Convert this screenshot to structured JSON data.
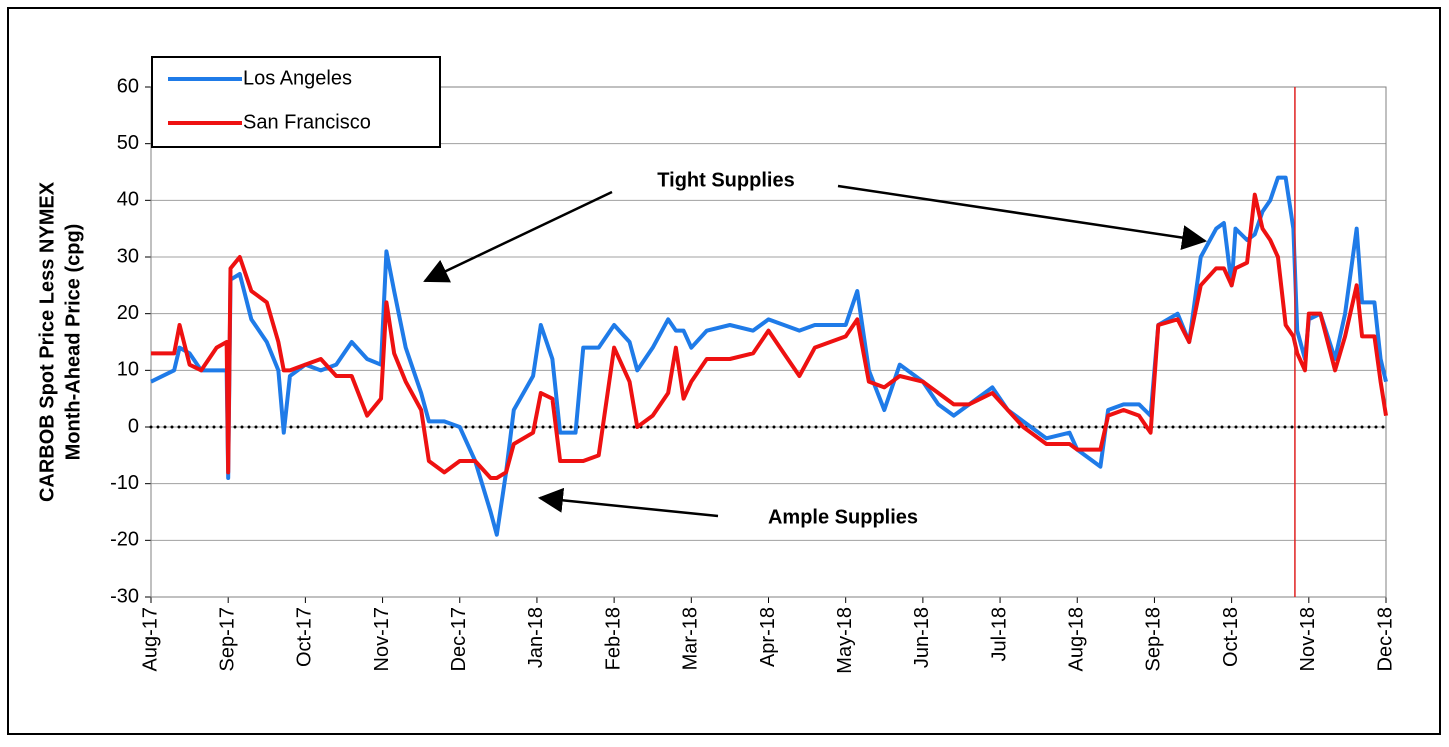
{
  "chart_data": {
    "type": "line",
    "ylabel": [
      "CARBOB Spot Price Less NYMEX",
      "Month-Ahead Price (cpg)"
    ],
    "xlim": [
      0,
      16
    ],
    "xticks": [
      {
        "value": 0,
        "label": "Aug-17"
      },
      {
        "value": 1,
        "label": "Sep-17"
      },
      {
        "value": 2,
        "label": "Oct-17"
      },
      {
        "value": 3,
        "label": "Nov-17"
      },
      {
        "value": 4,
        "label": "Dec-17"
      },
      {
        "value": 5,
        "label": "Jan-18"
      },
      {
        "value": 6,
        "label": "Feb-18"
      },
      {
        "value": 7,
        "label": "Mar-18"
      },
      {
        "value": 8,
        "label": "Apr-18"
      },
      {
        "value": 9,
        "label": "May-18"
      },
      {
        "value": 10,
        "label": "Jun-18"
      },
      {
        "value": 11,
        "label": "Jul-18"
      },
      {
        "value": 12,
        "label": "Aug-18"
      },
      {
        "value": 13,
        "label": "Sep-18"
      },
      {
        "value": 14,
        "label": "Oct-18"
      },
      {
        "value": 15,
        "label": "Nov-18"
      },
      {
        "value": 16,
        "label": "Dec-18"
      }
    ],
    "ylim": [
      -30,
      60
    ],
    "yticks": [
      -30,
      -20,
      -10,
      0,
      10,
      20,
      30,
      40,
      50,
      60
    ],
    "grid": true,
    "zero_line": true,
    "legend": "top-left",
    "vline": {
      "value": 14.82,
      "color": "#e02020"
    },
    "x": [
      0,
      0.3,
      0.37,
      0.5,
      0.65,
      0.85,
      0.98,
      1.0,
      1.03,
      1.15,
      1.3,
      1.5,
      1.65,
      1.72,
      1.8,
      2.0,
      2.2,
      2.4,
      2.6,
      2.8,
      2.98,
      3.05,
      3.15,
      3.3,
      3.5,
      3.6,
      3.8,
      4.0,
      4.2,
      4.4,
      4.48,
      4.6,
      4.7,
      4.95,
      5.05,
      5.2,
      5.3,
      5.5,
      5.6,
      5.8,
      6.0,
      6.2,
      6.3,
      6.5,
      6.7,
      6.8,
      6.9,
      7.0,
      7.2,
      7.5,
      7.8,
      8.0,
      8.2,
      8.4,
      8.6,
      8.8,
      9.0,
      9.15,
      9.3,
      9.5,
      9.7,
      10.0,
      10.2,
      10.4,
      10.6,
      10.9,
      11.1,
      11.3,
      11.6,
      11.9,
      12.0,
      12.3,
      12.4,
      12.6,
      12.8,
      12.95,
      13.05,
      13.3,
      13.45,
      13.6,
      13.8,
      13.9,
      14.0,
      14.05,
      14.2,
      14.3,
      14.4,
      14.5,
      14.6,
      14.7,
      14.8,
      14.85,
      14.95,
      15.0,
      15.15,
      15.34,
      15.47,
      15.62,
      15.69,
      15.85,
      15.93,
      16.0
    ],
    "series": [
      {
        "name": "Los Angeles",
        "color": "#1f7be8",
        "values": [
          8,
          10,
          14,
          13,
          10,
          10,
          10,
          -9,
          26,
          27,
          19,
          15,
          10,
          -1,
          9,
          11,
          10,
          11,
          15,
          12,
          11,
          31,
          24,
          14,
          6,
          1,
          1,
          0,
          -6,
          -15,
          -19,
          -8,
          3,
          9,
          18,
          12,
          -1,
          -1,
          14,
          14,
          18,
          15,
          10,
          14,
          19,
          17,
          17,
          14,
          17,
          18,
          17,
          19,
          18,
          17,
          18,
          18,
          18,
          24,
          10,
          3,
          11,
          8,
          4,
          2,
          4,
          7,
          3,
          1,
          -2,
          -1,
          -4,
          -7,
          3,
          4,
          4,
          2,
          18,
          20,
          15,
          30,
          35,
          36,
          25,
          35,
          33,
          34,
          38,
          40,
          44,
          44,
          35,
          17,
          12,
          19,
          20,
          12,
          20,
          35,
          22,
          22,
          12,
          8
        ]
      },
      {
        "name": "San Francisco",
        "color": "#ee1111",
        "values": [
          13,
          13,
          18,
          11,
          10,
          14,
          15,
          -8,
          28,
          30,
          24,
          22,
          15,
          10,
          10,
          11,
          12,
          9,
          9,
          2,
          5,
          22,
          13,
          8,
          3,
          -6,
          -8,
          -6,
          -6,
          -9,
          -9,
          -8,
          -3,
          -1,
          6,
          5,
          -6,
          -6,
          -6,
          -5,
          14,
          8,
          0,
          2,
          6,
          14,
          5,
          8,
          12,
          12,
          13,
          17,
          13,
          9,
          14,
          15,
          16,
          19,
          8,
          7,
          9,
          8,
          6,
          4,
          4,
          6,
          3,
          0,
          -3,
          -3,
          -4,
          -4,
          2,
          3,
          2,
          -1,
          18,
          19,
          15,
          25,
          28,
          28,
          25,
          28,
          29,
          41,
          35,
          33,
          30,
          18,
          16,
          13,
          10,
          20,
          20,
          10,
          16,
          25,
          16,
          16,
          8,
          2
        ]
      }
    ],
    "annotations": [
      {
        "text": "Tight Supplies"
      },
      {
        "text": "Ample Supplies"
      }
    ]
  }
}
